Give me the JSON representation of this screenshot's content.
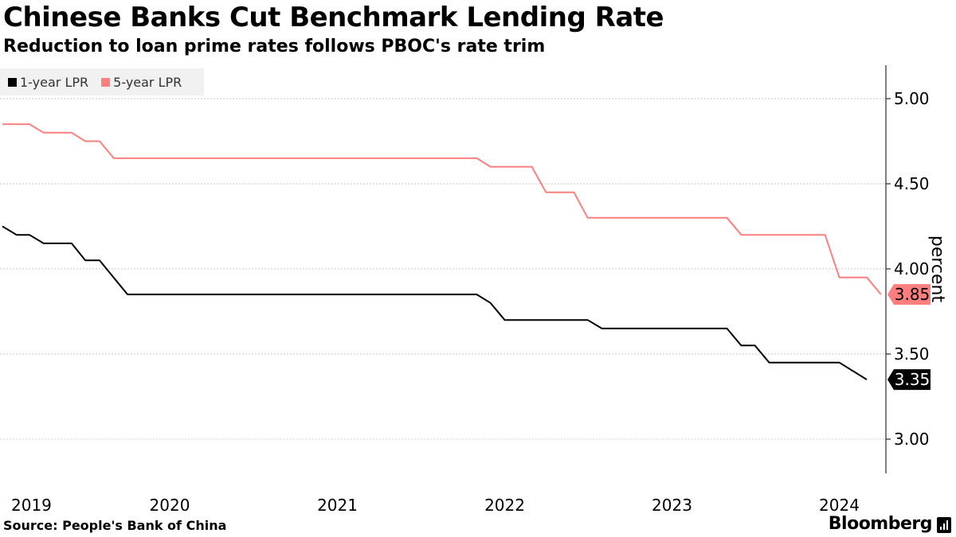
{
  "header": {
    "title": "Chinese Banks Cut Benchmark Lending Rate",
    "subtitle": "Reduction to loan prime rates follows PBOC's rate trim"
  },
  "footer": {
    "source": "Source: People's Bank of China",
    "brand": "Bloomberg",
    "brand_icon": "bloomberg-terminal-icon"
  },
  "chart_data": {
    "type": "line",
    "title": "Chinese Banks Cut Benchmark Lending Rate",
    "subtitle": "Reduction to loan prime rates follows PBOC's rate trim",
    "ylabel": "percent",
    "xlabel": "",
    "ylim": [
      2.8,
      5.2
    ],
    "xlim": [
      "2019-01-01",
      "2024-03-01"
    ],
    "y_ticks": [
      {
        "value": 5.0,
        "label": "5.00"
      },
      {
        "value": 4.5,
        "label": "4.50"
      },
      {
        "value": 4.0,
        "label": "4.00"
      },
      {
        "value": 3.5,
        "label": "3.50"
      },
      {
        "value": 3.0,
        "label": "3.00"
      }
    ],
    "x_ticks": [
      {
        "value": "2019-01-01",
        "label": "2019"
      },
      {
        "value": "2020-01-01",
        "label": "2020"
      },
      {
        "value": "2021-01-01",
        "label": "2021"
      },
      {
        "value": "2022-01-01",
        "label": "2022"
      },
      {
        "value": "2023-01-01",
        "label": "2023"
      },
      {
        "value": "2024-01-01",
        "label": "2024"
      }
    ],
    "grid": true,
    "legend_position": "top-left",
    "series": [
      {
        "name": "1-year LPR",
        "color": "#000000",
        "end_label": "3.35",
        "points": [
          [
            "2019-01-01",
            4.25
          ],
          [
            "2019-02-01",
            4.2
          ],
          [
            "2019-03-01",
            4.2
          ],
          [
            "2019-04-01",
            4.15
          ],
          [
            "2019-06-01",
            4.15
          ],
          [
            "2019-07-01",
            4.05
          ],
          [
            "2019-08-01",
            4.05
          ],
          [
            "2019-10-01",
            3.85
          ],
          [
            "2021-11-01",
            3.85
          ],
          [
            "2021-12-01",
            3.8
          ],
          [
            "2022-01-01",
            3.7
          ],
          [
            "2022-07-01",
            3.7
          ],
          [
            "2022-08-01",
            3.65
          ],
          [
            "2023-05-01",
            3.65
          ],
          [
            "2023-06-01",
            3.55
          ],
          [
            "2023-07-01",
            3.55
          ],
          [
            "2023-08-01",
            3.45
          ],
          [
            "2024-01-01",
            3.45
          ],
          [
            "2024-03-01",
            3.35
          ]
        ]
      },
      {
        "name": "5-year LPR",
        "color": "#ff7f7f",
        "end_label": "3.85",
        "points": [
          [
            "2019-01-01",
            4.85
          ],
          [
            "2019-03-01",
            4.85
          ],
          [
            "2019-04-01",
            4.8
          ],
          [
            "2019-06-01",
            4.8
          ],
          [
            "2019-07-01",
            4.75
          ],
          [
            "2019-08-01",
            4.75
          ],
          [
            "2019-09-01",
            4.65
          ],
          [
            "2021-11-01",
            4.65
          ],
          [
            "2021-12-01",
            4.6
          ],
          [
            "2022-03-01",
            4.6
          ],
          [
            "2022-04-01",
            4.45
          ],
          [
            "2022-06-01",
            4.45
          ],
          [
            "2022-07-01",
            4.3
          ],
          [
            "2023-05-01",
            4.3
          ],
          [
            "2023-06-01",
            4.2
          ],
          [
            "2023-12-01",
            4.2
          ],
          [
            "2024-01-01",
            3.95
          ],
          [
            "2024-03-01",
            3.95
          ],
          [
            "2024-04-01",
            3.85
          ]
        ]
      }
    ]
  }
}
